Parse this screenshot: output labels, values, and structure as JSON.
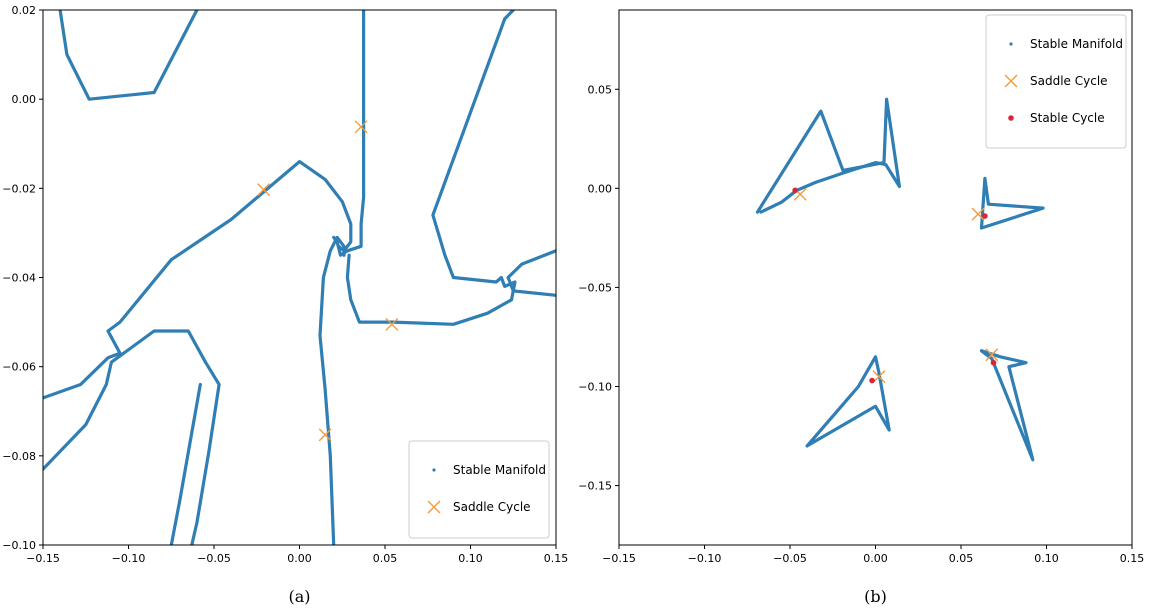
{
  "chart_data": [
    {
      "type": "line",
      "caption": "(a)",
      "xlim": [
        -0.15,
        0.15
      ],
      "ylim": [
        -0.1,
        0.02
      ],
      "xticks": [
        -0.15,
        -0.1,
        -0.05,
        0.0,
        0.05,
        0.1,
        0.15
      ],
      "xtick_labels": [
        "−0.15",
        "−0.10",
        "−0.05",
        "0.00",
        "0.05",
        "0.10",
        "0.15"
      ],
      "yticks": [
        0.02,
        0.0,
        -0.02,
        -0.04,
        -0.06,
        -0.08,
        -0.1
      ],
      "ytick_labels": [
        "0.02",
        "0.00",
        "−0.02",
        "−0.04",
        "−0.06",
        "−0.08",
        "−0.10"
      ],
      "legend_position": "lower-right",
      "legend": [
        "Stable Manifold",
        "Saddle Cycle"
      ],
      "colors": {
        "manifold": "#2f7eb4",
        "saddle": "#f39c3c"
      },
      "series": [
        {
          "name": "Stable Manifold",
          "segments": [
            [
              [
                -0.14,
                0.02
              ],
              [
                -0.136,
                0.01
              ],
              [
                -0.123,
                0.0
              ],
              [
                -0.085,
                0.0015
              ],
              [
                -0.06,
                0.02
              ]
            ],
            [
              [
                0.0375,
                0.02
              ],
              [
                0.0375,
                -0.022
              ],
              [
                0.036,
                -0.028
              ],
              [
                0.036,
                -0.033
              ],
              [
                0.028,
                -0.034
              ],
              [
                0.024,
                -0.035
              ],
              [
                0.022,
                -0.032
              ],
              [
                0.02,
                -0.031
              ]
            ],
            [
              [
                -0.15,
                -0.067
              ],
              [
                -0.128,
                -0.064
              ],
              [
                -0.112,
                -0.058
              ],
              [
                -0.105,
                -0.057
              ],
              [
                -0.112,
                -0.052
              ],
              [
                -0.105,
                -0.05
              ],
              [
                -0.075,
                -0.036
              ],
              [
                -0.04,
                -0.027
              ],
              [
                0.0,
                -0.014
              ],
              [
                0.015,
                -0.018
              ],
              [
                0.025,
                -0.023
              ],
              [
                0.03,
                -0.028
              ],
              [
                0.03,
                -0.032
              ],
              [
                0.026,
                -0.034
              ],
              [
                0.023,
                -0.033
              ]
            ],
            [
              [
                -0.15,
                -0.083
              ],
              [
                -0.125,
                -0.073
              ],
              [
                -0.113,
                -0.064
              ],
              [
                -0.11,
                -0.059
              ],
              [
                -0.085,
                -0.052
              ],
              [
                -0.065,
                -0.052
              ],
              [
                -0.055,
                -0.059
              ],
              [
                -0.047,
                -0.064
              ],
              [
                -0.053,
                -0.079
              ],
              [
                -0.06,
                -0.095
              ],
              [
                -0.063,
                -0.1
              ]
            ],
            [
              [
                0.02,
                -0.1
              ],
              [
                0.018,
                -0.08
              ],
              [
                0.015,
                -0.065
              ],
              [
                0.012,
                -0.053
              ],
              [
                0.014,
                -0.04
              ],
              [
                0.018,
                -0.034
              ],
              [
                0.022,
                -0.031
              ],
              [
                0.026,
                -0.033
              ],
              [
                0.026,
                -0.035
              ]
            ],
            [
              [
                0.029,
                -0.035
              ],
              [
                0.028,
                -0.04
              ],
              [
                0.03,
                -0.045
              ],
              [
                0.035,
                -0.05
              ],
              [
                0.055,
                -0.05
              ],
              [
                0.09,
                -0.0505
              ],
              [
                0.11,
                -0.048
              ],
              [
                0.124,
                -0.045
              ],
              [
                0.126,
                -0.041
              ],
              [
                0.12,
                -0.042
              ],
              [
                0.118,
                -0.04
              ],
              [
                0.115,
                -0.041
              ],
              [
                0.09,
                -0.04
              ],
              [
                0.085,
                -0.035
              ],
              [
                0.078,
                -0.026
              ],
              [
                0.12,
                0.018
              ],
              [
                0.125,
                0.02
              ]
            ],
            [
              [
                0.15,
                -0.034
              ],
              [
                0.13,
                -0.037
              ],
              [
                0.122,
                -0.04
              ],
              [
                0.125,
                -0.043
              ],
              [
                0.15,
                -0.044
              ]
            ],
            [
              [
                -0.075,
                -0.1
              ],
              [
                -0.07,
                -0.09
              ],
              [
                -0.058,
                -0.064
              ]
            ]
          ]
        },
        {
          "name": "Saddle Cycle",
          "points": [
            [
              0.036,
              -0.0062
            ],
            [
              -0.021,
              -0.0203
            ],
            [
              0.054,
              -0.0505
            ],
            [
              0.015,
              -0.0753
            ]
          ]
        }
      ]
    },
    {
      "type": "line",
      "caption": "(b)",
      "xlim": [
        -0.15,
        0.15
      ],
      "ylim": [
        -0.18,
        0.09
      ],
      "xticks": [
        -0.15,
        -0.1,
        -0.05,
        0.0,
        0.05,
        0.1,
        0.15
      ],
      "xtick_labels": [
        "−0.15",
        "−0.10",
        "−0.05",
        "0.00",
        "0.05",
        "0.10",
        "0.15"
      ],
      "yticks": [
        0.05,
        0.0,
        -0.05,
        -0.1,
        -0.15
      ],
      "ytick_labels": [
        "0.05",
        "0.00",
        "−0.05",
        "−0.10",
        "−0.15"
      ],
      "legend_position": "top-right",
      "legend": [
        "Stable Manifold",
        "Saddle Cycle",
        "Stable Cycle"
      ],
      "colors": {
        "manifold": "#2f7eb4",
        "saddle": "#f39c3c",
        "stable": "#d62738"
      },
      "series": [
        {
          "name": "Stable Manifold",
          "segments": [
            [
              [
                -0.067,
                -0.012
              ],
              [
                -0.055,
                -0.007
              ],
              [
                -0.046,
                -0.001
              ],
              [
                -0.035,
                0.003
              ],
              [
                -0.018,
                0.008
              ],
              [
                0.0,
                0.013
              ],
              [
                0.006,
                0.012
              ],
              [
                0.014,
                0.001
              ],
              [
                0.0065,
                0.045
              ],
              [
                0.005,
                0.013
              ],
              [
                -0.019,
                0.009
              ],
              [
                -0.032,
                0.039
              ],
              [
                -0.069,
                -0.012
              ]
            ],
            [
              [
                0.062,
                -0.02
              ],
              [
                0.064,
                0.005
              ],
              [
                0.066,
                -0.008
              ],
              [
                0.098,
                -0.01
              ],
              [
                0.062,
                -0.02
              ]
            ],
            [
              [
                -0.04,
                -0.13
              ],
              [
                -0.022,
                -0.112
              ],
              [
                -0.01,
                -0.1
              ],
              [
                0.0,
                -0.085
              ],
              [
                0.002,
                -0.093
              ],
              [
                0.008,
                -0.122
              ],
              [
                0.0,
                -0.11
              ],
              [
                -0.04,
                -0.13
              ]
            ],
            [
              [
                0.062,
                -0.082
              ],
              [
                0.073,
                -0.085
              ],
              [
                0.088,
                -0.088
              ],
              [
                0.078,
                -0.09
              ],
              [
                0.092,
                -0.137
              ],
              [
                0.068,
                -0.086
              ],
              [
                0.062,
                -0.082
              ]
            ]
          ]
        },
        {
          "name": "Saddle Cycle",
          "points": [
            [
              -0.044,
              -0.003
            ],
            [
              0.06,
              -0.013
            ],
            [
              0.002,
              -0.095
            ],
            [
              0.068,
              -0.084
            ]
          ]
        },
        {
          "name": "Stable Cycle",
          "points": [
            [
              -0.047,
              -0.001
            ],
            [
              0.064,
              -0.014
            ],
            [
              -0.002,
              -0.097
            ],
            [
              0.069,
              -0.088
            ]
          ]
        }
      ]
    }
  ]
}
